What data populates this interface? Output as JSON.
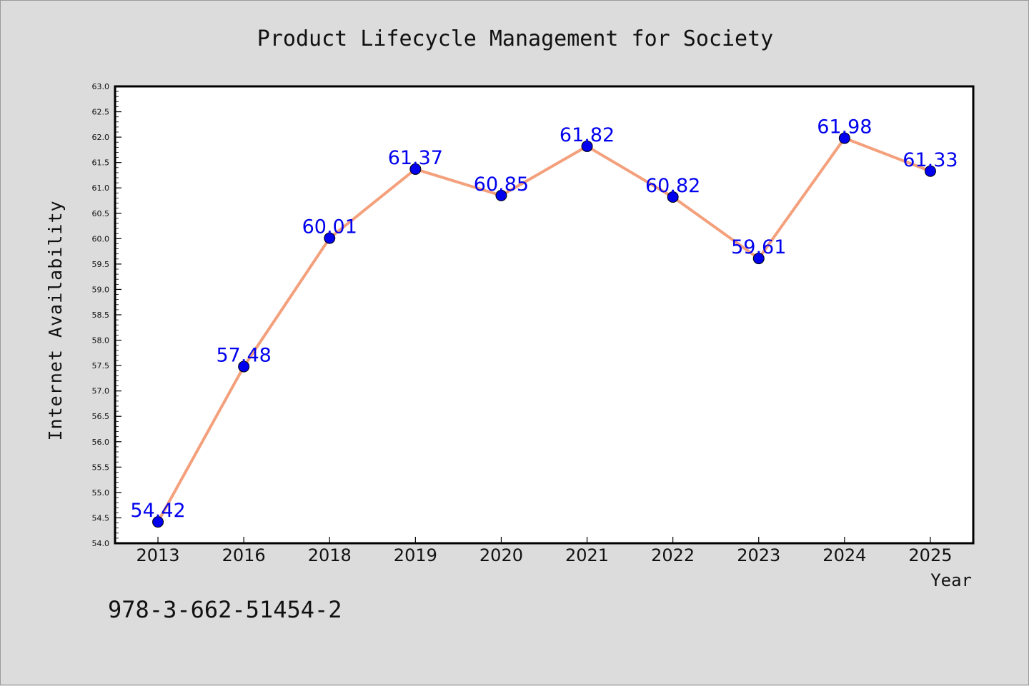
{
  "chart_data": {
    "type": "line",
    "title": "Product Lifecycle Management for Society",
    "xlabel": "Year",
    "ylabel": "Internet Availability",
    "categories": [
      "2013",
      "2016",
      "2018",
      "2019",
      "2020",
      "2021",
      "2022",
      "2023",
      "2024",
      "2025"
    ],
    "series": [
      {
        "values": [
          54.42,
          57.48,
          60.01,
          61.37,
          60.85,
          61.82,
          60.82,
          59.61,
          61.98,
          61.33
        ],
        "data_labels": [
          "54.42",
          "57.48",
          "60.01",
          "61.37",
          "60.85",
          "61.82",
          "60.82",
          "59.61",
          "61.98",
          "61.33"
        ],
        "line_color": "#f4a07c",
        "marker_color": "#0000ee",
        "label_color": "#0000ee"
      }
    ],
    "ylim": [
      54.0,
      63.0
    ],
    "yticks": [
      "54.0",
      "54.5",
      "55.0",
      "55.5",
      "56.0",
      "56.5",
      "57.0",
      "57.5",
      "58.0",
      "58.5",
      "59.0",
      "59.5",
      "60.0",
      "60.5",
      "61.0",
      "61.5",
      "62.0",
      "62.5",
      "63.0"
    ],
    "grid": false,
    "legend": "none"
  },
  "footer": {
    "isbn": "978-3-662-51454-2"
  },
  "colors": {
    "background": "#dcdcdc",
    "plot_background": "#ffffff",
    "axis": "#000000"
  }
}
